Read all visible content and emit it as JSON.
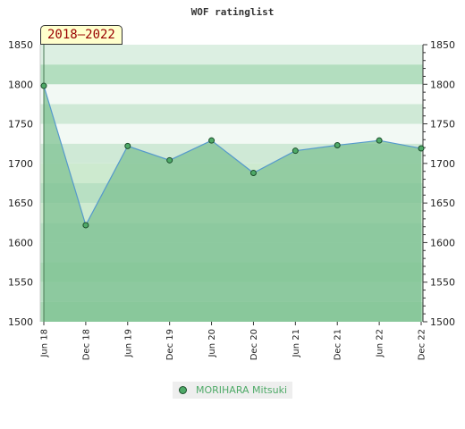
{
  "header": {
    "title": "WOF ratinglist",
    "period_badge": "2018–2022"
  },
  "legend": {
    "player_name": "MORIHARA Mitsuki"
  },
  "colors": {
    "line": "#5599cc",
    "marker_fill": "#4faa68",
    "marker_stroke": "#1a4d2a",
    "area_fill": "#7fc293",
    "band_light": "#dcefe2",
    "band_mid": "#b3debf",
    "band_dark": "#7dc592"
  },
  "chart_data": {
    "type": "area",
    "title": "WOF ratinglist",
    "categories": [
      "Jun 18",
      "Dec 18",
      "Jun 19",
      "Dec 19",
      "Jun 20",
      "Dec 20",
      "Jun 21",
      "Dec 21",
      "Jun 22",
      "Dec 22"
    ],
    "series": [
      {
        "name": "MORIHARA Mitsuki",
        "values": [
          1798,
          1622,
          1722,
          1704,
          1729,
          1688,
          1716,
          1723,
          1729,
          1719
        ]
      }
    ],
    "ylim": [
      1500,
      1850
    ],
    "yticks": [
      "1500",
      "1550",
      "1600",
      "1650",
      "1700",
      "1750",
      "1800",
      "1850"
    ],
    "grid": false,
    "legend_position": "bottom"
  }
}
